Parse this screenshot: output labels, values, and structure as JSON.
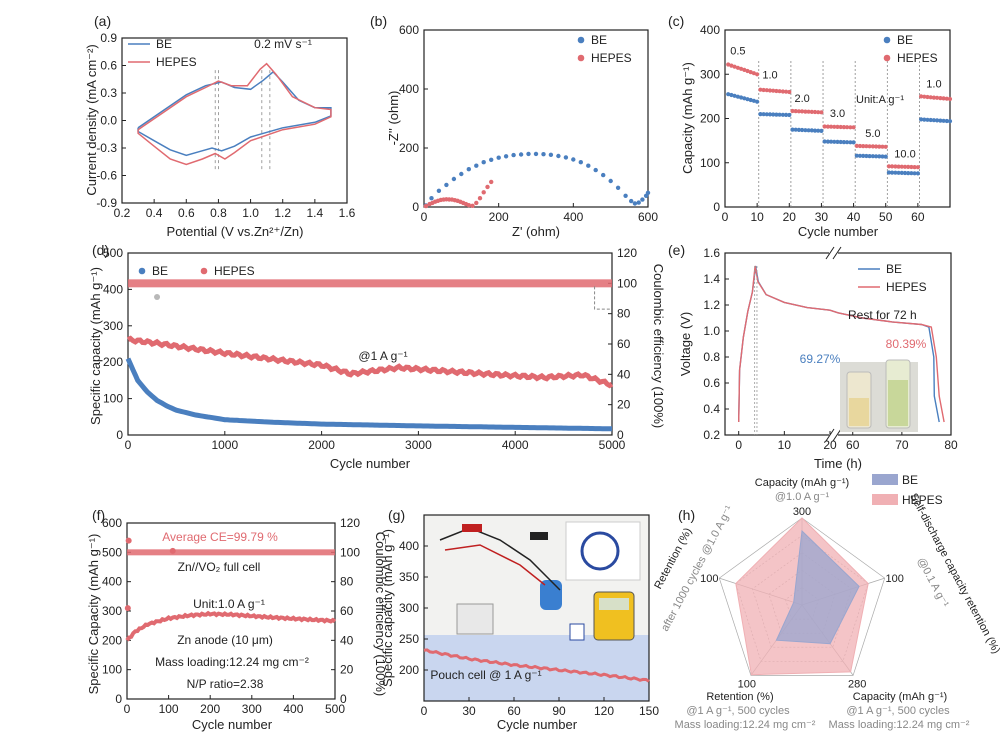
{
  "colors": {
    "be": "#4a7fbf",
    "hepes": "#e06a70",
    "be_fill": "#9aa6cf",
    "hepes_fill": "#f0b0b4",
    "axis": "#222222",
    "note": "#555555"
  },
  "chart_data": [
    {
      "id": "a",
      "panel_label": "(a)",
      "type": "line",
      "xlabel": "Potential (V vs.Zn²⁺/Zn)",
      "ylabel": "Current density (mA cm⁻²)",
      "xlim": [
        0.2,
        1.6
      ],
      "ylim": [
        -0.9,
        0.9
      ],
      "xticks": [
        "0.2",
        "0.4",
        "0.6",
        "0.8",
        "1.0",
        "1.2",
        "1.4",
        "1.6"
      ],
      "yticks": [
        "-0.9",
        "-0.6",
        "-0.3",
        "0.0",
        "0.3",
        "0.6",
        "0.9"
      ],
      "annotation": "0.2 mV s⁻¹",
      "legend": [
        "BE",
        "HEPES"
      ],
      "series": [
        {
          "name": "BE",
          "color_key": "be",
          "points": [
            [
              0.3,
              -0.08
            ],
            [
              0.45,
              0.1
            ],
            [
              0.6,
              0.28
            ],
            [
              0.72,
              0.38
            ],
            [
              0.82,
              0.42
            ],
            [
              0.9,
              0.36
            ],
            [
              1.0,
              0.34
            ],
            [
              1.08,
              0.44
            ],
            [
              1.14,
              0.53
            ],
            [
              1.2,
              0.42
            ],
            [
              1.3,
              0.22
            ],
            [
              1.4,
              0.14
            ],
            [
              1.5,
              0.14
            ],
            [
              1.5,
              0.05
            ],
            [
              1.4,
              -0.02
            ],
            [
              1.2,
              -0.08
            ],
            [
              1.0,
              -0.18
            ],
            [
              0.9,
              -0.28
            ],
            [
              0.82,
              -0.33
            ],
            [
              0.76,
              -0.3
            ],
            [
              0.68,
              -0.34
            ],
            [
              0.6,
              -0.38
            ],
            [
              0.5,
              -0.32
            ],
            [
              0.4,
              -0.22
            ],
            [
              0.3,
              -0.12
            ]
          ]
        },
        {
          "name": "HEPES",
          "color_key": "hepes",
          "points": [
            [
              0.3,
              -0.1
            ],
            [
              0.45,
              0.08
            ],
            [
              0.6,
              0.26
            ],
            [
              0.72,
              0.36
            ],
            [
              0.8,
              0.43
            ],
            [
              0.88,
              0.38
            ],
            [
              0.98,
              0.38
            ],
            [
              1.06,
              0.56
            ],
            [
              1.1,
              0.62
            ],
            [
              1.16,
              0.5
            ],
            [
              1.26,
              0.26
            ],
            [
              1.4,
              0.14
            ],
            [
              1.5,
              0.12
            ],
            [
              1.5,
              0.04
            ],
            [
              1.4,
              -0.04
            ],
            [
              1.2,
              -0.1
            ],
            [
              1.0,
              -0.22
            ],
            [
              0.9,
              -0.35
            ],
            [
              0.84,
              -0.42
            ],
            [
              0.78,
              -0.36
            ],
            [
              0.7,
              -0.42
            ],
            [
              0.6,
              -0.48
            ],
            [
              0.5,
              -0.42
            ],
            [
              0.4,
              -0.28
            ],
            [
              0.3,
              -0.14
            ]
          ]
        }
      ]
    },
    {
      "id": "b",
      "panel_label": "(b)",
      "type": "scatter",
      "xlabel": "Z' (ohm)",
      "ylabel": "-Z'' (ohm)",
      "xlim": [
        0,
        600
      ],
      "ylim": [
        0,
        600
      ],
      "xticks": [
        "0",
        "200",
        "400",
        "600"
      ],
      "yticks": [
        "0",
        "200",
        "400",
        "600"
      ],
      "legend": [
        "BE",
        "HEPES"
      ],
      "series": [
        {
          "name": "BE",
          "color_key": "be",
          "points": [
            [
              5,
              5
            ],
            [
              20,
              30
            ],
            [
              40,
              55
            ],
            [
              60,
              75
            ],
            [
              80,
              95
            ],
            [
              100,
              112
            ],
            [
              120,
              128
            ],
            [
              140,
              140
            ],
            [
              160,
              152
            ],
            [
              180,
              160
            ],
            [
              200,
              167
            ],
            [
              220,
              172
            ],
            [
              240,
              176
            ],
            [
              260,
              178
            ],
            [
              280,
              180
            ],
            [
              300,
              180
            ],
            [
              320,
              179
            ],
            [
              340,
              177
            ],
            [
              360,
              173
            ],
            [
              380,
              168
            ],
            [
              400,
              161
            ],
            [
              420,
              152
            ],
            [
              440,
              140
            ],
            [
              460,
              125
            ],
            [
              480,
              108
            ],
            [
              500,
              88
            ],
            [
              520,
              65
            ],
            [
              540,
              38
            ],
            [
              555,
              20
            ],
            [
              565,
              12
            ],
            [
              575,
              15
            ],
            [
              585,
              25
            ],
            [
              595,
              38
            ],
            [
              600,
              48
            ]
          ]
        },
        {
          "name": "HEPES",
          "color_key": "hepes",
          "points": [
            [
              5,
              3
            ],
            [
              15,
              10
            ],
            [
              30,
              18
            ],
            [
              45,
              24
            ],
            [
              60,
              26
            ],
            [
              75,
              25
            ],
            [
              90,
              21
            ],
            [
              105,
              14
            ],
            [
              120,
              6
            ],
            [
              130,
              4
            ],
            [
              140,
              14
            ],
            [
              150,
              30
            ],
            [
              160,
              50
            ],
            [
              170,
              68
            ],
            [
              180,
              85
            ]
          ]
        }
      ]
    },
    {
      "id": "c",
      "panel_label": "(c)",
      "type": "scatter",
      "xlabel": "Cycle number",
      "ylabel": "Capacity (mAh g⁻¹)",
      "xlim": [
        0,
        70
      ],
      "ylim": [
        0,
        400
      ],
      "xticks": [
        "0",
        "10",
        "20",
        "30",
        "40",
        "50",
        "60"
      ],
      "yticks": [
        "0",
        "100",
        "200",
        "300",
        "400"
      ],
      "legend": [
        "BE",
        "HEPES"
      ],
      "unit_note": "Unit:A g⁻¹",
      "rates": [
        {
          "label": "0.5",
          "x": 4,
          "y": 345
        },
        {
          "label": "1.0",
          "x": 14,
          "y": 290
        },
        {
          "label": "2.0",
          "x": 24,
          "y": 237
        },
        {
          "label": "3.0",
          "x": 35,
          "y": 203
        },
        {
          "label": "5.0",
          "x": 46,
          "y": 158
        },
        {
          "label": "10.0",
          "x": 56,
          "y": 112
        },
        {
          "label": "1.0",
          "x": 65,
          "y": 270
        }
      ],
      "segments": [
        {
          "x": [
            1,
            10
          ],
          "be": [
            255,
            238
          ],
          "hepes": [
            322,
            300
          ]
        },
        {
          "x": [
            11,
            20
          ],
          "be": [
            210,
            208
          ],
          "hepes": [
            265,
            260
          ]
        },
        {
          "x": [
            21,
            30
          ],
          "be": [
            175,
            172
          ],
          "hepes": [
            217,
            214
          ]
        },
        {
          "x": [
            31,
            40
          ],
          "be": [
            148,
            146
          ],
          "hepes": [
            182,
            180
          ]
        },
        {
          "x": [
            41,
            50
          ],
          "be": [
            116,
            114
          ],
          "hepes": [
            138,
            136
          ]
        },
        {
          "x": [
            51,
            60
          ],
          "be": [
            78,
            76
          ],
          "hepes": [
            92,
            90
          ]
        },
        {
          "x": [
            61,
            70
          ],
          "be": [
            198,
            194
          ],
          "hepes": [
            250,
            244
          ]
        }
      ]
    },
    {
      "id": "d",
      "panel_label": "(d)",
      "type": "scatter",
      "xlabel": "Cycle number",
      "ylabel": "Specific capacity (mAh g⁻¹)",
      "y2label": "Coulombic efficiency (100%)",
      "xlim": [
        0,
        5000
      ],
      "ylim": [
        0,
        500
      ],
      "y2lim": [
        0,
        120
      ],
      "xticks": [
        "0",
        "1000",
        "2000",
        "3000",
        "4000",
        "5000"
      ],
      "yticks": [
        "0",
        "100",
        "200",
        "300",
        "400",
        "500"
      ],
      "y2ticks": [
        "0",
        "20",
        "40",
        "60",
        "80",
        "100",
        "120"
      ],
      "annotation": "@1 A g⁻¹",
      "legend": [
        "BE",
        "HEPES"
      ],
      "series": [
        {
          "name": "BE",
          "color_key": "be",
          "points": [
            [
              0,
              210
            ],
            [
              50,
              180
            ],
            [
              100,
              150
            ],
            [
              200,
              118
            ],
            [
              300,
              95
            ],
            [
              400,
              80
            ],
            [
              500,
              68
            ],
            [
              700,
              55
            ],
            [
              1000,
              42
            ],
            [
              1500,
              35
            ],
            [
              2000,
              30
            ],
            [
              3000,
              25
            ],
            [
              4000,
              21
            ],
            [
              5000,
              17
            ]
          ]
        },
        {
          "name": "HEPES",
          "color_key": "hepes",
          "points": [
            [
              0,
              262
            ],
            [
              300,
              252
            ],
            [
              600,
              240
            ],
            [
              1000,
              225
            ],
            [
              1500,
              208
            ],
            [
              2000,
              192
            ],
            [
              2300,
              168
            ],
            [
              2800,
              185
            ],
            [
              3300,
              175
            ],
            [
              3800,
              166
            ],
            [
              4300,
              158
            ],
            [
              4700,
              165
            ],
            [
              5000,
              137
            ]
          ]
        }
      ],
      "ce_level": 100,
      "ce_outlier": [
        {
          "x": 300,
          "y": 91
        }
      ]
    },
    {
      "id": "e",
      "panel_label": "(e)",
      "type": "line",
      "xlabel": "Time (h)",
      "ylabel": "Voltage (V)",
      "ylim": [
        0.2,
        1.6
      ],
      "xticks_left": [
        "0",
        "10",
        "20"
      ],
      "xticks_right": [
        "60",
        "70",
        "80"
      ],
      "yticks": [
        "0.2",
        "0.4",
        "0.6",
        "0.8",
        "1.0",
        "1.2",
        "1.4",
        "1.6"
      ],
      "legend": [
        "BE",
        "HEPES"
      ],
      "annotation": "Rest for 72 h",
      "retention": [
        {
          "name": "BE",
          "value": "69.27%"
        },
        {
          "name": "HEPES",
          "value": "80.39%"
        }
      ]
    },
    {
      "id": "f",
      "panel_label": "(f)",
      "type": "scatter",
      "xlabel": "Cycle number",
      "ylabel": "Specific Capacity (mAh g⁻¹)",
      "y2label": "Coulombic efficiency (100%)",
      "xlim": [
        0,
        500
      ],
      "ylim": [
        0,
        600
      ],
      "y2lim": [
        0,
        120
      ],
      "xticks": [
        "0",
        "100",
        "200",
        "300",
        "400",
        "500"
      ],
      "yticks": [
        "0",
        "100",
        "200",
        "300",
        "400",
        "500",
        "600"
      ],
      "y2ticks": [
        "0",
        "20",
        "40",
        "60",
        "80",
        "100",
        "120"
      ],
      "ce_note": "Average CE=99.79 %",
      "notes": [
        "Zn//VO₂  full cell",
        "Unit:1.0 A g⁻¹",
        "Zn anode (10 μm)",
        "Mass loading:12.24 mg cm⁻²",
        "N/P ratio=2.38"
      ],
      "capacity": [
        [
          0,
          200
        ],
        [
          20,
          230
        ],
        [
          50,
          255
        ],
        [
          100,
          275
        ],
        [
          150,
          285
        ],
        [
          200,
          290
        ],
        [
          250,
          288
        ],
        [
          300,
          283
        ],
        [
          350,
          278
        ],
        [
          400,
          274
        ],
        [
          450,
          270
        ],
        [
          500,
          266
        ]
      ]
    },
    {
      "id": "g",
      "panel_label": "(g)",
      "type": "line",
      "xlabel": "Cycle number",
      "ylabel": "Specific capacity (mAh g⁻¹)",
      "xlim": [
        0,
        150
      ],
      "ylim": [
        150,
        450
      ],
      "xticks": [
        "0",
        "30",
        "60",
        "90",
        "120",
        "150"
      ],
      "yticks": [
        "200",
        "250",
        "300",
        "350",
        "400"
      ],
      "annotation": "Pouch cell @ 1 A g⁻¹",
      "capacity": [
        [
          0,
          232
        ],
        [
          30,
          218
        ],
        [
          60,
          208
        ],
        [
          90,
          200
        ],
        [
          120,
          192
        ],
        [
          150,
          183
        ]
      ]
    },
    {
      "id": "h",
      "panel_label": "(h)",
      "type": "radar",
      "legend": [
        "BE",
        "HEPES"
      ],
      "axes": [
        {
          "title": "Capacity (mAh g⁻¹)",
          "sub": "@1.0 A g⁻¹",
          "max": "300"
        },
        {
          "title": "Self-discharge capacity retention (%)",
          "sub": "@0.1 A g⁻¹",
          "max": "100"
        },
        {
          "title": "Capacity (mAh g⁻¹)",
          "sub": "@1 A g⁻¹, 500 cycles",
          "sub2": "Mass loading:12.24 mg cm⁻²",
          "max": "280"
        },
        {
          "title": "Retention (%)",
          "sub": "@1 A g⁻¹, 500 cycles",
          "sub2": "Mass loading:12.24 mg cm⁻²",
          "max": "100"
        },
        {
          "title": "Retention (%)",
          "sub": "after 1000 cycles @1.0 A g⁻¹",
          "max": "100"
        }
      ],
      "values": {
        "BE": [
          0.85,
          0.69,
          0.55,
          0.5,
          0.1
        ],
        "HEPES": [
          1.0,
          0.8,
          0.95,
          0.99,
          0.8
        ]
      }
    }
  ]
}
